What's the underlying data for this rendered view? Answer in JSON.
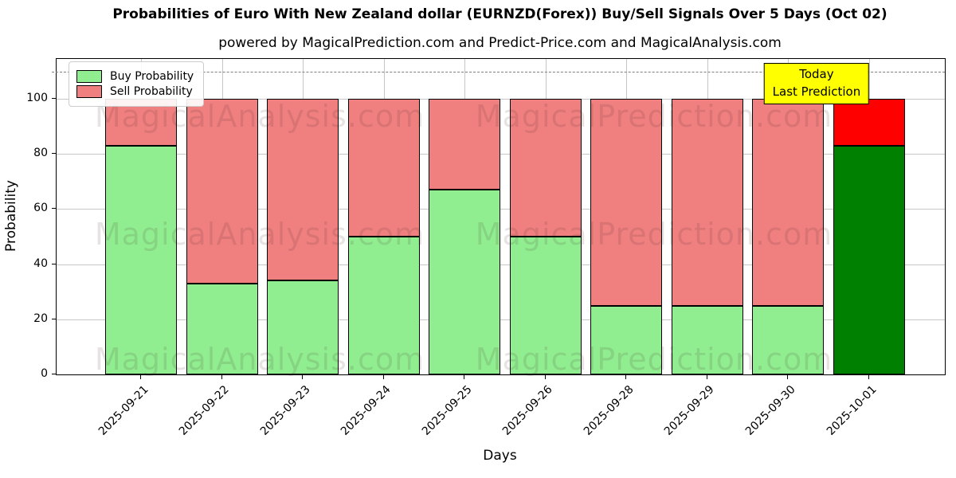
{
  "chart_data": {
    "type": "bar",
    "stacked": true,
    "title": "Probabilities of Euro With New Zealand dollar (EURNZD(Forex)) Buy/Sell Signals Over 5 Days (Oct 02)",
    "subtitle": "powered by MagicalPrediction.com and Predict-Price.com and MagicalAnalysis.com",
    "xlabel": "Days",
    "ylabel": "Probability",
    "categories": [
      "2025-09-21",
      "2025-09-22",
      "2025-09-23",
      "2025-09-24",
      "2025-09-25",
      "2025-09-26",
      "2025-09-28",
      "2025-09-29",
      "2025-09-30",
      "2025-10-01"
    ],
    "series": [
      {
        "name": "Buy Probability",
        "color": "#90ee90",
        "today_color": "#008000",
        "values": [
          83,
          33,
          34,
          50,
          67,
          50,
          25,
          25,
          25,
          83
        ]
      },
      {
        "name": "Sell Probability",
        "color": "#f08080",
        "today_color": "#ff0000",
        "values": [
          17,
          67,
          66,
          50,
          33,
          50,
          75,
          75,
          75,
          17
        ]
      }
    ],
    "ylim": [
      0,
      114.5
    ],
    "yticks": [
      0,
      20,
      40,
      60,
      80,
      100
    ],
    "grid": true,
    "dashed_line_y": 110,
    "legend_position": "upper-left",
    "bar_edge_color": "#000000",
    "annotation": {
      "line1": "Today",
      "line2": "Last Prediction",
      "bg_color": "#ffff00"
    },
    "watermarks": {
      "left_text": "MagicalAnalysis.com",
      "right_text": "MagicalPrediction.com",
      "rows": 3
    }
  }
}
